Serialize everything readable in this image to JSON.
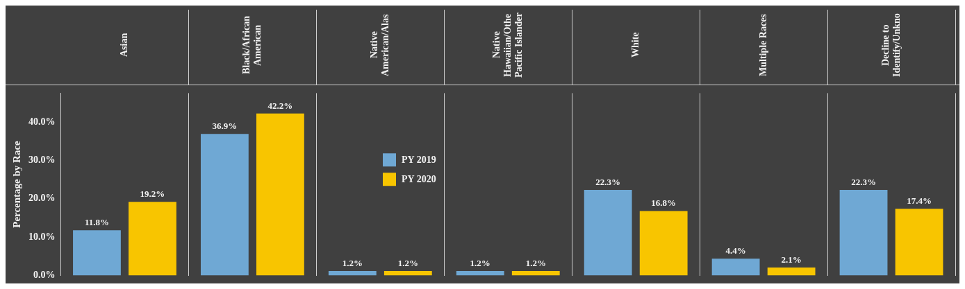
{
  "chart_data": {
    "type": "bar",
    "ylabel": "Percentage by Race",
    "categories": [
      "Asian",
      "Black/African American",
      "Native American/Alas",
      "Native Hawaiian/Othe Pacific Islander",
      "White",
      "Multiple Races",
      "Decline to Identify/Unkno"
    ],
    "series": [
      {
        "name": "PY 2019",
        "color": "#6fa8d4",
        "values": [
          11.8,
          36.9,
          1.2,
          1.2,
          22.3,
          4.4,
          22.3
        ],
        "value_labels": [
          "11.8%",
          "36.9%",
          "1.2%",
          "1.2%",
          "22.3%",
          "4.4%",
          "22.3%"
        ]
      },
      {
        "name": "PY 2020",
        "color": "#f8c500",
        "values": [
          19.2,
          42.2,
          1.2,
          1.2,
          16.8,
          2.1,
          17.4
        ],
        "value_labels": [
          "19.2%",
          "42.2%",
          "1.2%",
          "1.2%",
          "16.8%",
          "2.1%",
          "17.4%"
        ]
      }
    ],
    "ylim": [
      0,
      47.5
    ],
    "yticks": [
      {
        "value": 0,
        "label": "0.0%"
      },
      {
        "value": 10,
        "label": "10.0%"
      },
      {
        "value": 20,
        "label": "20.0%"
      },
      {
        "value": 30,
        "label": "30.0%"
      },
      {
        "value": 40,
        "label": "40.0%"
      }
    ],
    "grid": "x",
    "legend": "top"
  }
}
